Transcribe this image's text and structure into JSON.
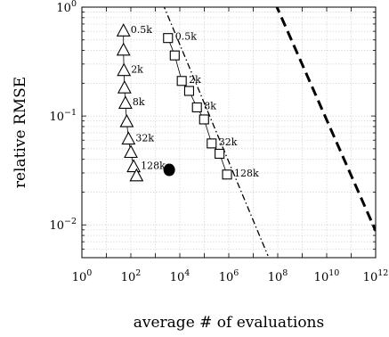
{
  "chart_data": {
    "type": "line",
    "xlabel": "average # of evaluations",
    "ylabel": "relative RMSE",
    "xscale": "log",
    "yscale": "log",
    "xlim": [
      1,
      1000000000000
    ],
    "ylim": [
      0.005,
      1
    ],
    "grid": true,
    "xticks": [
      {
        "base": "10",
        "exp": "0",
        "value": 1
      },
      {
        "base": "10",
        "exp": "2",
        "value": 100
      },
      {
        "base": "10",
        "exp": "4",
        "value": 10000
      },
      {
        "base": "10",
        "exp": "6",
        "value": 1000000
      },
      {
        "base": "10",
        "exp": "8",
        "value": 100000000
      },
      {
        "base": "10",
        "exp": "10",
        "value": 10000000000
      },
      {
        "base": "10",
        "exp": "12",
        "value": 1000000000000
      }
    ],
    "yticks": [
      {
        "base": "10",
        "exp": "0",
        "value": 1
      },
      {
        "base": "10",
        "exp": "−1",
        "value": 0.1
      },
      {
        "base": "10",
        "exp": "−2",
        "value": 0.01
      }
    ],
    "series": [
      {
        "marker": "triangle",
        "x": [
          50,
          50,
          52,
          55,
          60,
          68,
          80,
          100,
          130,
          170
        ],
        "y": [
          0.6,
          0.4,
          0.26,
          0.18,
          0.13,
          0.088,
          0.061,
          0.046,
          0.034,
          0.028
        ],
        "labels": [
          {
            "index": 0,
            "text": "0.5k"
          },
          {
            "index": 2,
            "text": "2k"
          },
          {
            "index": 4,
            "text": "8k"
          },
          {
            "index": 6,
            "text": "32k"
          },
          {
            "index": 8,
            "text": "128k"
          }
        ]
      },
      {
        "marker": "square",
        "x": [
          3300,
          6200,
          12000,
          24000,
          50000,
          98000,
          200000,
          420000,
          850000
        ],
        "y": [
          0.52,
          0.36,
          0.21,
          0.17,
          0.12,
          0.093,
          0.056,
          0.045,
          0.029
        ],
        "labels": [
          {
            "index": 0,
            "text": "0.5k"
          },
          {
            "index": 2,
            "text": "2k"
          },
          {
            "index": 4,
            "text": "8k"
          },
          {
            "index": 6,
            "text": "32k"
          },
          {
            "index": 8,
            "text": "128k"
          }
        ]
      },
      {
        "marker": "circle",
        "x": [
          3700
        ],
        "y": [
          0.032
        ]
      },
      {
        "style": "dash-dot",
        "x": [
          2000,
          40000000
        ],
        "y": [
          1.08,
          0.0052
        ]
      },
      {
        "style": "thick-dashed",
        "x": [
          80000000,
          1000000000000
        ],
        "y": [
          1.08,
          0.0088
        ]
      }
    ]
  }
}
